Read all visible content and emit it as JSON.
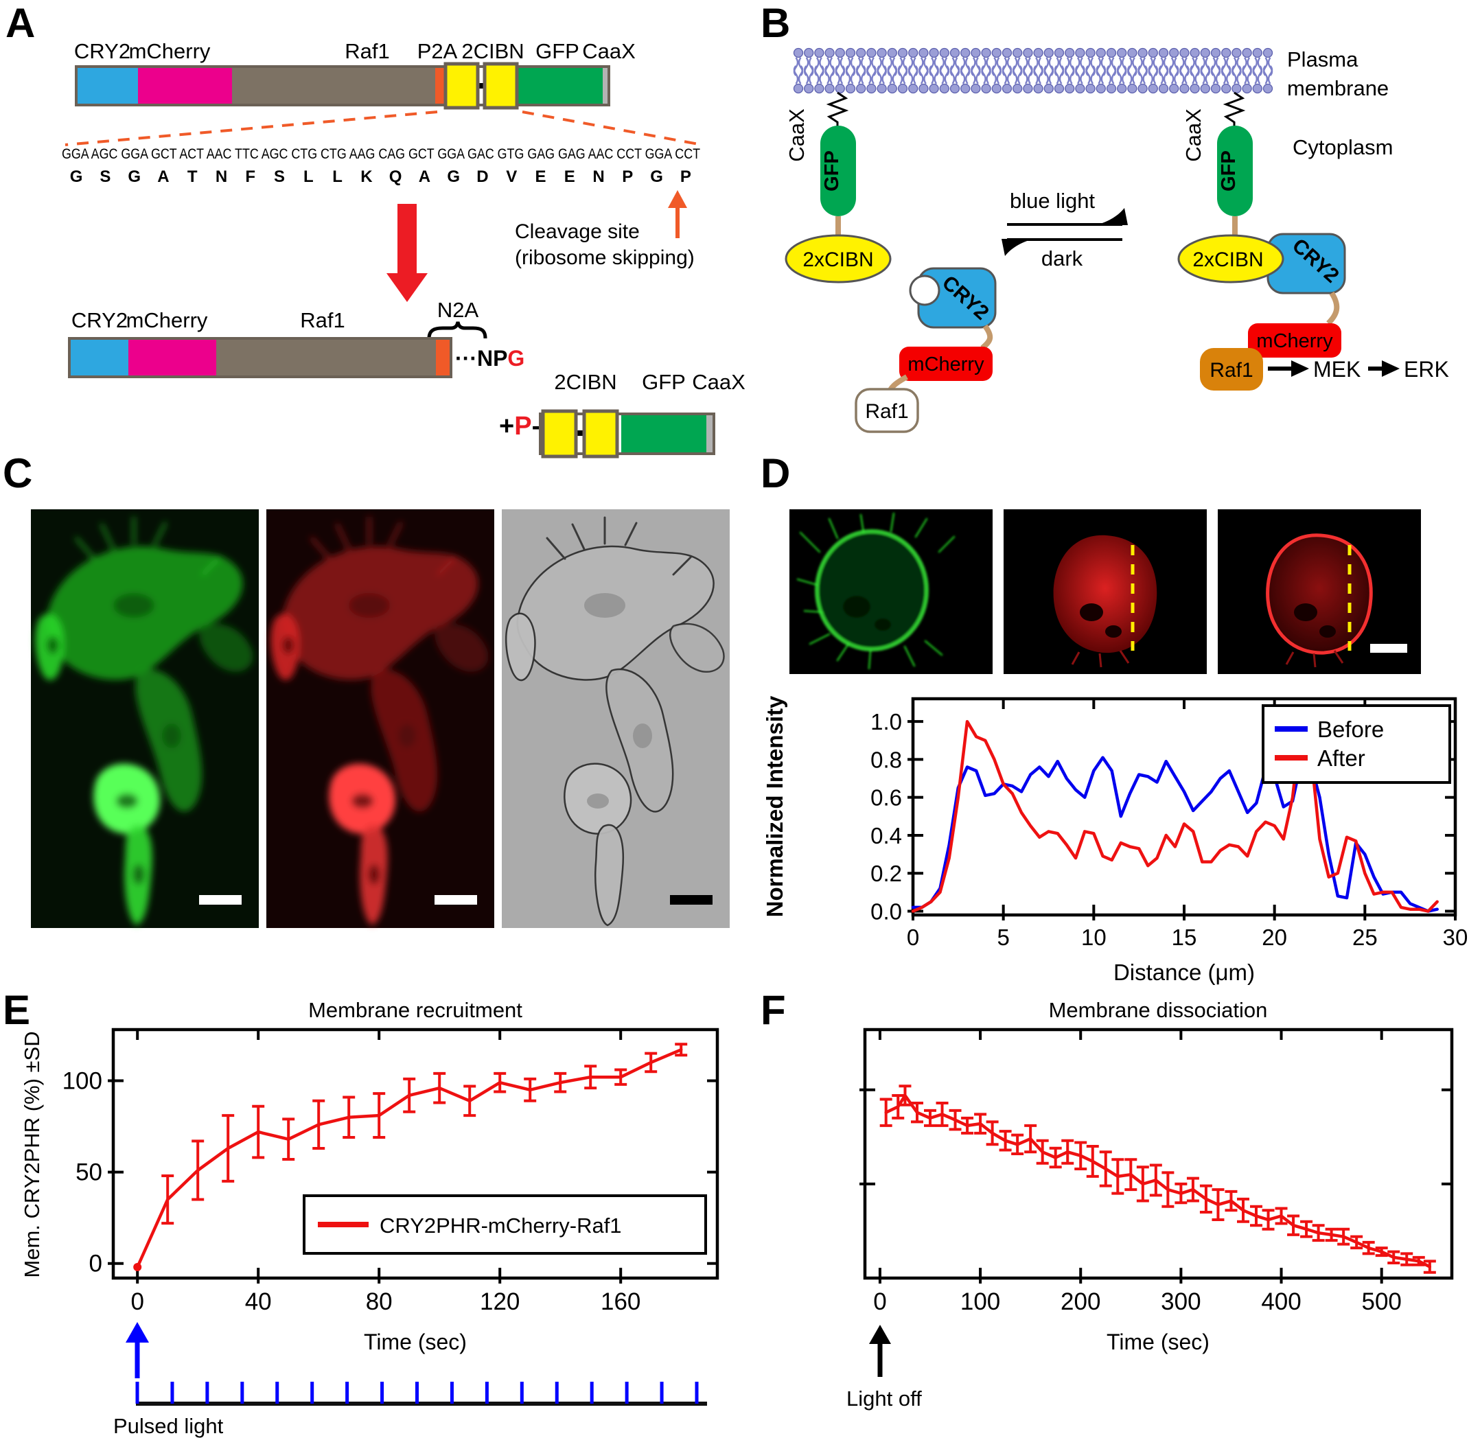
{
  "colors": {
    "cry2_blue": "#2EA7E0",
    "mcherry_magenta": "#EC008C",
    "raf1_bar_brown": "#7D7264",
    "p2a_orange": "#F05A28",
    "cibn_yellow": "#FFF200",
    "gfp_green": "#00A651",
    "caax_gray": "#B3B3B3",
    "bar_outline": "#6B6156",
    "red_arrow": "#EC1C24",
    "mcherry_red": "#F40000",
    "raf1_orange": "#D9820B",
    "linker_tan": "#C49A6C",
    "lipid_purple": "#9B9ED6",
    "lipid_outline": "#5C60AE",
    "blue_text": "#0000FF",
    "chart_red": "#EE1111",
    "chart_blue": "#0000EE"
  },
  "panels": {
    "A": {
      "label": "A",
      "construct_top_labels": [
        "CRY2",
        "mCherry",
        "Raf1",
        "P2A",
        "2CIBN",
        "GFP",
        "CaaX"
      ],
      "dna_codons": [
        "GGA",
        "AGC",
        "GGA",
        "GCT",
        "ACT",
        "AAC",
        "TTC",
        "AGC",
        "CTG",
        "CTG",
        "AAG",
        "CAG",
        "GCT",
        "GGA",
        "GAC",
        "GTG",
        "GAG",
        "GAG",
        "AAC",
        "CCT",
        "GGA",
        "CCT"
      ],
      "aa": [
        "G",
        "S",
        "G",
        "A",
        "T",
        "N",
        "F",
        "S",
        "L",
        "L",
        "K",
        "Q",
        "A",
        "G",
        "D",
        "V",
        "E",
        "E",
        "N",
        "P",
        "G",
        "P"
      ],
      "aa_red_start": 20,
      "cleavage_line1": "Cleavage site",
      "cleavage_line2": "(ribosome skipping)",
      "construct_mid_labels": [
        "CRY2",
        "mCherry",
        "Raf1"
      ],
      "n2a": "N2A",
      "npg_black": "···NP",
      "npg_red": "G",
      "plus": "+",
      "p_red": "P",
      "dash": "-",
      "construct_bottom_labels": [
        "2CIBN",
        "GFP",
        "CaaX"
      ]
    },
    "B": {
      "label": "B",
      "plasma": "Plasma",
      "membrane": "membrane",
      "cytoplasm": "Cytoplasm",
      "caax": "CaaX",
      "gfp": "GFP",
      "cibn2x": "2xCIBN",
      "cry2": "CRY2",
      "mcherry": "mCherry",
      "raf1": "Raf1",
      "blue_light": "blue light",
      "dark": "dark",
      "mek": "MEK",
      "erk": "ERK"
    },
    "C": {
      "label": "C"
    },
    "D": {
      "label": "D",
      "before": "Before",
      "after": "After"
    },
    "E": {
      "label": "E",
      "pulsed_light": "Pulsed light",
      "pulse_tick_count": 17
    },
    "F": {
      "label": "F",
      "light_off": "Light off"
    }
  },
  "chart_data": [
    {
      "id": "line-profile",
      "type": "line",
      "title": "",
      "xlabel": "Distance (μm)",
      "ylabel": "Normalized Intensity",
      "xlim": [
        0,
        30
      ],
      "ylim": [
        -0.02,
        1.12
      ],
      "xticks": [
        0,
        5,
        10,
        15,
        20,
        25,
        30
      ],
      "xtick_labels": [
        "0",
        "5",
        "10",
        "15",
        "20",
        "25",
        "30"
      ],
      "yticks": [
        0,
        0.2,
        0.4,
        0.6,
        0.8,
        1.0
      ],
      "ytick_labels": [
        "0.0",
        "0.2",
        "0.4",
        "0.6",
        "0.8",
        "1.0"
      ],
      "grid": false,
      "legend": [
        "Before",
        "After"
      ],
      "legend_position": "upper right",
      "series": [
        {
          "name": "Before",
          "color": "#0000EE",
          "x": [
            0,
            0.5,
            1,
            1.5,
            2,
            2.5,
            3,
            3.5,
            4,
            4.5,
            5,
            5.5,
            6,
            6.5,
            7,
            7.5,
            8,
            8.5,
            9,
            9.5,
            10,
            10.5,
            11,
            11.5,
            12,
            12.5,
            13,
            13.5,
            14,
            14.5,
            15,
            15.5,
            16,
            16.5,
            17,
            17.5,
            18,
            18.5,
            19,
            19.5,
            20,
            20.5,
            21,
            21.5,
            22,
            22.5,
            23,
            23.5,
            24,
            24.5,
            25,
            25.5,
            26,
            26.5,
            27,
            27.5,
            28,
            28.5,
            29
          ],
          "y": [
            0.02,
            0.02,
            0.05,
            0.12,
            0.35,
            0.65,
            0.76,
            0.74,
            0.61,
            0.62,
            0.67,
            0.66,
            0.63,
            0.72,
            0.76,
            0.71,
            0.79,
            0.7,
            0.64,
            0.6,
            0.74,
            0.81,
            0.74,
            0.5,
            0.62,
            0.72,
            0.71,
            0.68,
            0.79,
            0.71,
            0.63,
            0.53,
            0.58,
            0.63,
            0.7,
            0.74,
            0.63,
            0.52,
            0.57,
            0.75,
            0.71,
            0.55,
            0.58,
            0.8,
            0.78,
            0.6,
            0.3,
            0.08,
            0.07,
            0.36,
            0.3,
            0.18,
            0.09,
            0.1,
            0.1,
            0.04,
            0.02,
            0.0,
            0.01
          ]
        },
        {
          "name": "After",
          "color": "#EE1111",
          "x": [
            0,
            0.5,
            1,
            1.5,
            2,
            2.5,
            3,
            3.5,
            4,
            4.5,
            5,
            5.5,
            6,
            6.5,
            7,
            7.5,
            8,
            8.5,
            9,
            9.5,
            10,
            10.5,
            11,
            11.5,
            12,
            12.5,
            13,
            13.5,
            14,
            14.5,
            15,
            15.5,
            16,
            16.5,
            17,
            17.5,
            18,
            18.5,
            19,
            19.5,
            20,
            20.5,
            21,
            21.5,
            22,
            22.5,
            23,
            23.5,
            24,
            24.5,
            25,
            25.5,
            26,
            26.5,
            27,
            27.5,
            28,
            28.5,
            29
          ],
          "y": [
            0.0,
            0.02,
            0.05,
            0.1,
            0.28,
            0.6,
            1.0,
            0.92,
            0.9,
            0.8,
            0.67,
            0.62,
            0.52,
            0.45,
            0.39,
            0.42,
            0.41,
            0.35,
            0.28,
            0.42,
            0.41,
            0.29,
            0.27,
            0.36,
            0.34,
            0.33,
            0.24,
            0.28,
            0.4,
            0.34,
            0.46,
            0.42,
            0.26,
            0.26,
            0.32,
            0.35,
            0.34,
            0.29,
            0.42,
            0.47,
            0.45,
            0.38,
            0.6,
            1.02,
            0.85,
            0.38,
            0.18,
            0.2,
            0.39,
            0.37,
            0.2,
            0.09,
            0.1,
            0.1,
            0.02,
            0.01,
            0.01,
            0.0,
            0.05
          ]
        }
      ]
    },
    {
      "id": "membrane-recruitment",
      "type": "line+errorbar",
      "title": "Membrane recruitment",
      "xlabel": "Time (sec)",
      "ylabel": "Mem. CRY2PHR (%) ±SD",
      "xlim": [
        -8,
        192
      ],
      "ylim": [
        -8,
        128
      ],
      "xticks": [
        0,
        40,
        80,
        120,
        160
      ],
      "xtick_labels": [
        "0",
        "40",
        "80",
        "120",
        "160"
      ],
      "yticks": [
        0,
        50,
        100
      ],
      "ytick_labels": [
        "0",
        "50",
        "100"
      ],
      "grid": false,
      "legend": [
        "CRY2PHR-mCherry-Raf1"
      ],
      "legend_position": "lower right",
      "annotation": "Pulsed light (blue arrow at t=0, 17 light pulses)",
      "series": [
        {
          "name": "CRY2PHR-mCherry-Raf1",
          "color": "#EE1111",
          "dot": true,
          "x": [
            0,
            10,
            20,
            30,
            40,
            50,
            60,
            70,
            80,
            90,
            100,
            110,
            120,
            130,
            140,
            150,
            160,
            170,
            180
          ],
          "y": [
            -2,
            35,
            51,
            63,
            72,
            68,
            76,
            80,
            81,
            92,
            96,
            89,
            99,
            95,
            99,
            102,
            102,
            110,
            117
          ],
          "err": [
            0,
            13,
            16,
            18,
            14,
            11,
            13,
            11,
            12,
            9,
            8,
            8,
            5,
            6,
            5,
            6,
            4,
            5,
            3
          ]
        }
      ]
    },
    {
      "id": "membrane-dissociation",
      "type": "line+errorbar",
      "title": "Membrane dissociation",
      "xlabel": "Time (sec)",
      "ylabel": "",
      "xlim": [
        -15,
        570
      ],
      "ylim": [
        0,
        1.32
      ],
      "xticks": [
        0,
        100,
        200,
        300,
        400,
        500
      ],
      "xtick_labels": [
        "0",
        "100",
        "200",
        "300",
        "400",
        "500"
      ],
      "yticks": [
        0.5,
        1.0
      ],
      "ytick_labels": [],
      "grid": false,
      "legend": [],
      "annotation": "Light off (black arrow at t=0)",
      "series": [
        {
          "name": "CRY2PHR-mCherry-Raf1 dissociation",
          "color": "#EE1111",
          "x": [
            6,
            18,
            25,
            37,
            50,
            62,
            75,
            87,
            100,
            112,
            125,
            137,
            150,
            162,
            175,
            187,
            200,
            212,
            225,
            237,
            250,
            262,
            275,
            287,
            300,
            312,
            325,
            337,
            350,
            362,
            375,
            387,
            400,
            412,
            425,
            437,
            450,
            462,
            475,
            487,
            500,
            512,
            525,
            537,
            548
          ],
          "y": [
            0.88,
            0.91,
            0.97,
            0.88,
            0.85,
            0.87,
            0.84,
            0.81,
            0.82,
            0.77,
            0.73,
            0.71,
            0.74,
            0.67,
            0.64,
            0.67,
            0.65,
            0.62,
            0.58,
            0.54,
            0.55,
            0.5,
            0.52,
            0.47,
            0.45,
            0.47,
            0.42,
            0.39,
            0.41,
            0.36,
            0.33,
            0.31,
            0.33,
            0.28,
            0.26,
            0.24,
            0.23,
            0.22,
            0.19,
            0.16,
            0.14,
            0.11,
            0.1,
            0.09,
            0.06
          ],
          "err": [
            0.07,
            0.06,
            0.05,
            0.05,
            0.04,
            0.06,
            0.05,
            0.04,
            0.05,
            0.06,
            0.05,
            0.05,
            0.07,
            0.06,
            0.05,
            0.06,
            0.07,
            0.08,
            0.09,
            0.09,
            0.08,
            0.09,
            0.08,
            0.09,
            0.05,
            0.06,
            0.07,
            0.08,
            0.05,
            0.06,
            0.05,
            0.05,
            0.04,
            0.05,
            0.04,
            0.04,
            0.03,
            0.04,
            0.03,
            0.03,
            0.02,
            0.03,
            0.03,
            0.02,
            0.03
          ]
        }
      ]
    }
  ]
}
